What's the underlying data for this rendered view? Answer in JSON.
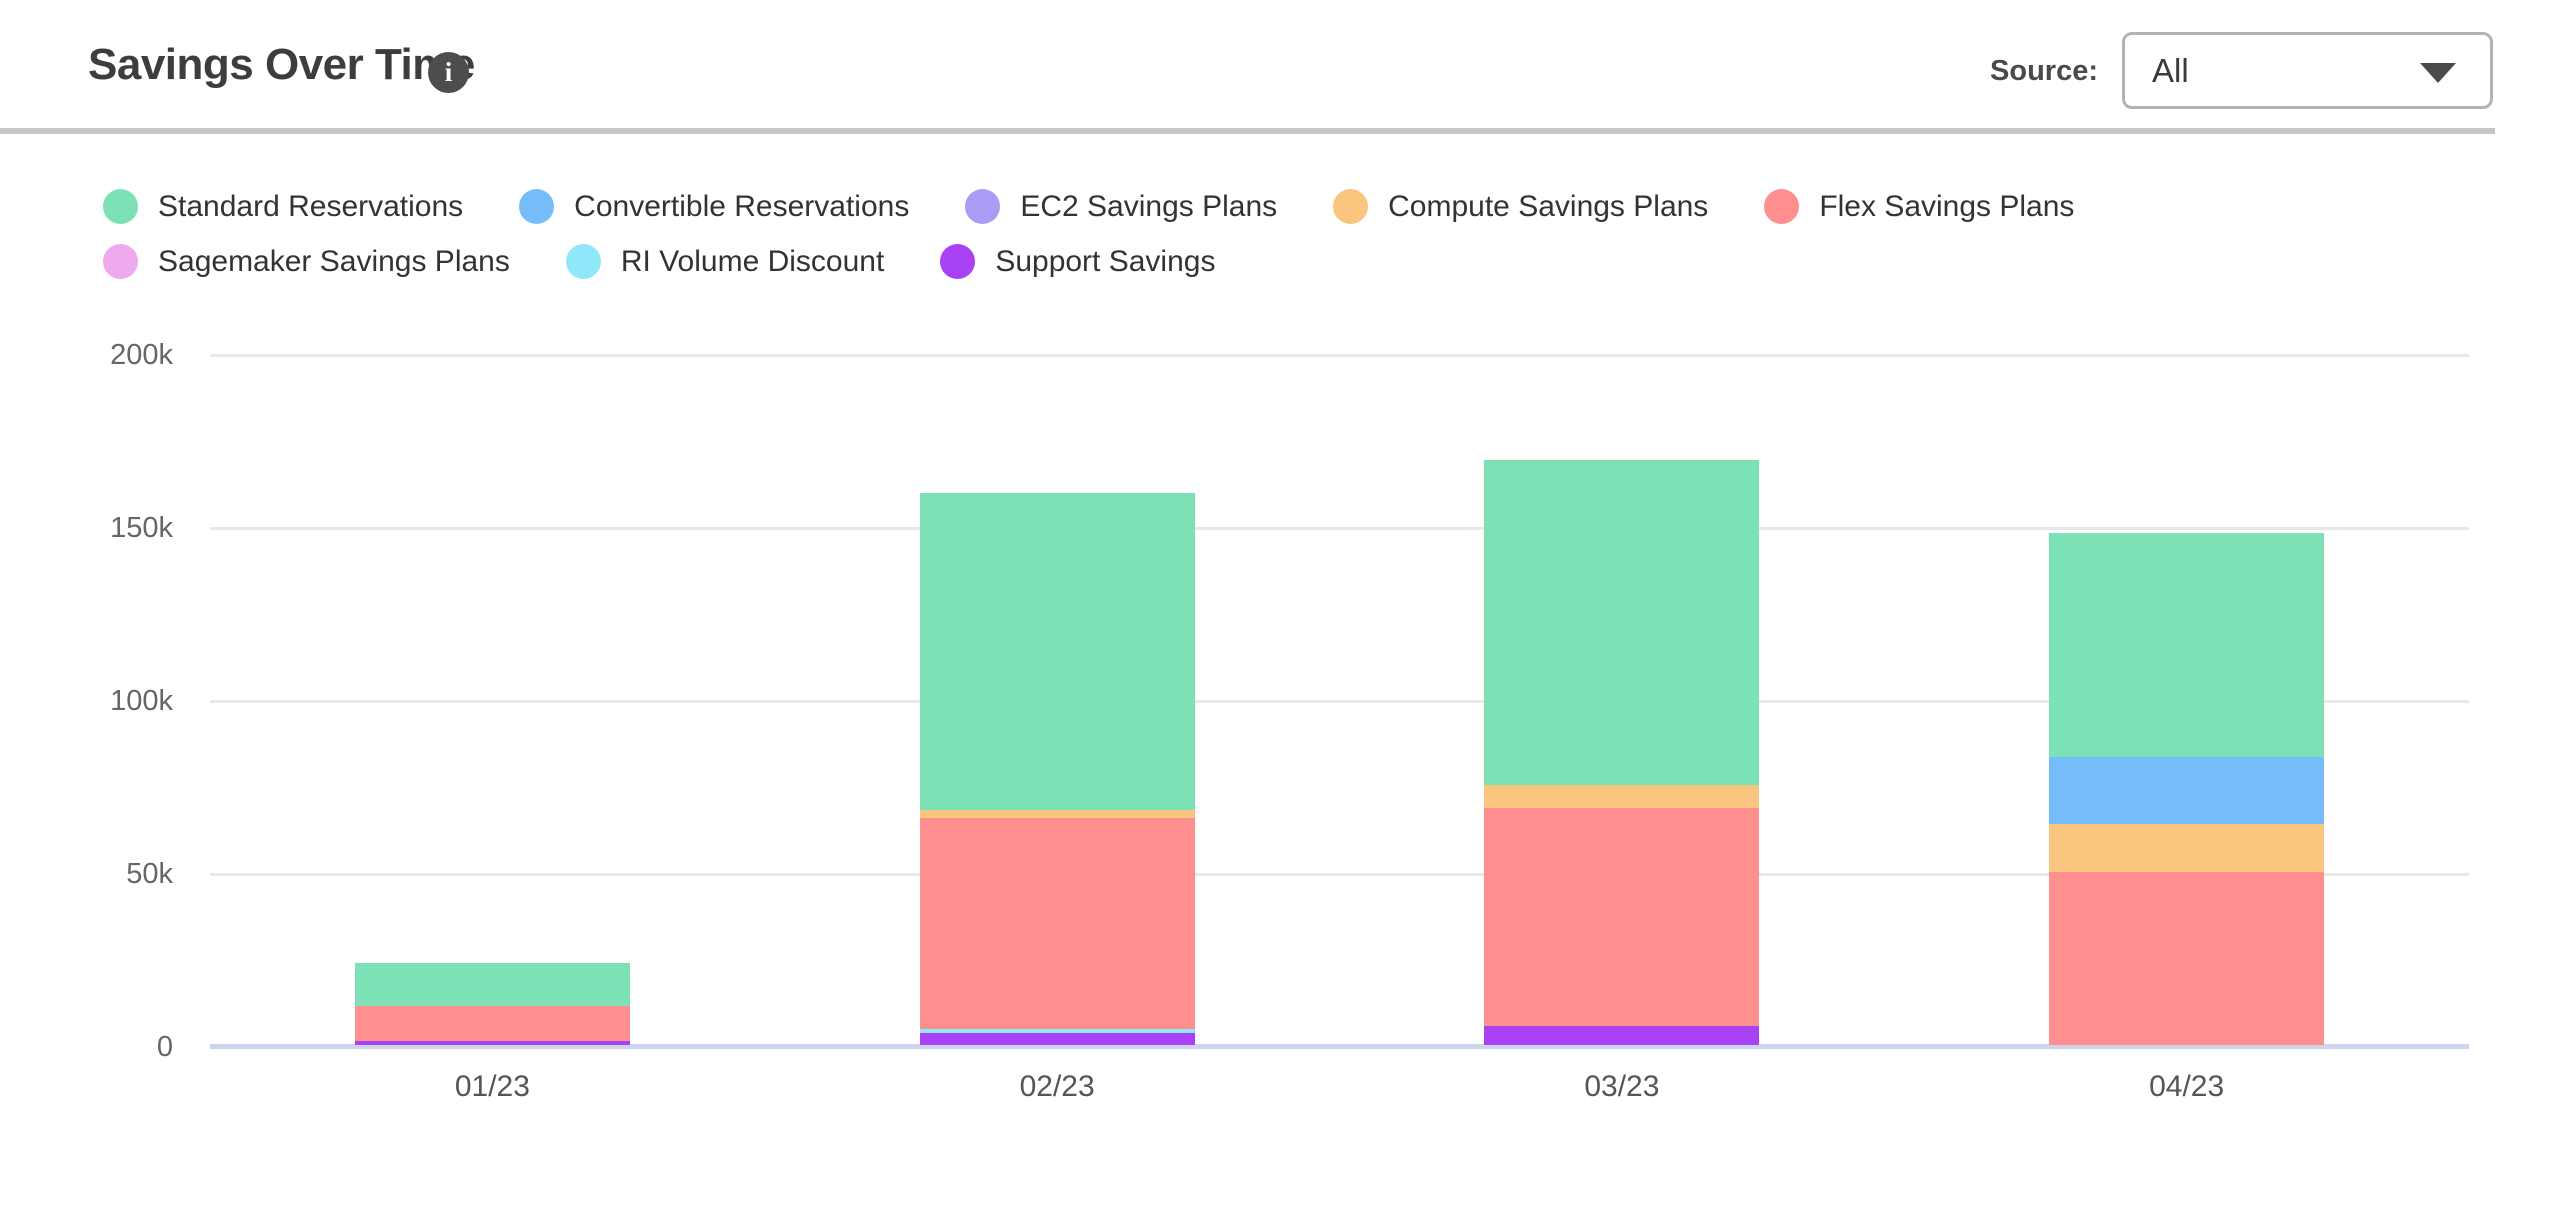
{
  "header": {
    "title": "Savings Over Time",
    "info_icon_glyph": "i",
    "source": {
      "label": "Source:",
      "selected": "All"
    }
  },
  "legend": {
    "rows": [
      [
        {
          "label": "Standard Reservations",
          "color": "#7de1b6"
        },
        {
          "label": "Convertible Reservations",
          "color": "#77bcfa"
        },
        {
          "label": "EC2 Savings Plans",
          "color": "#a89cf5"
        },
        {
          "label": "Compute Savings Plans",
          "color": "#f9c57f"
        },
        {
          "label": "Flex Savings Plans",
          "color": "#ff8f8f"
        }
      ],
      [
        {
          "label": "Sagemaker Savings Plans",
          "color": "#efa9ef"
        },
        {
          "label": "RI Volume Discount",
          "color": "#8fe8fa"
        },
        {
          "label": "Support Savings",
          "color": "#a941f5"
        }
      ]
    ]
  },
  "chart_data": {
    "type": "bar",
    "stacked": true,
    "title": "Savings Over Time",
    "categories": [
      "01/23",
      "02/23",
      "03/23",
      "04/23"
    ],
    "series": [
      {
        "name": "Standard Reservations",
        "color": "#7de1b6",
        "values": [
          12300,
          91600,
          94000,
          64900
        ]
      },
      {
        "name": "Convertible Reservations",
        "color": "#77bcfa",
        "values": [
          0,
          0,
          0,
          19500
        ]
      },
      {
        "name": "EC2 Savings Plans",
        "color": "#a89cf5",
        "values": [
          0,
          0,
          0,
          0
        ]
      },
      {
        "name": "Compute Savings Plans",
        "color": "#f9c57f",
        "values": [
          0,
          2300,
          6600,
          14000
        ]
      },
      {
        "name": "Flex Savings Plans",
        "color": "#ff8f8f",
        "values": [
          10200,
          61000,
          62900,
          50000
        ]
      },
      {
        "name": "Sagemaker Savings Plans",
        "color": "#efa9ef",
        "values": [
          0,
          0,
          0,
          0
        ]
      },
      {
        "name": "RI Volume Discount",
        "color": "#8fe8fa",
        "values": [
          0,
          1200,
          0,
          0
        ]
      },
      {
        "name": "Support Savings",
        "color": "#a941f5",
        "values": [
          1300,
          3500,
          5500,
          0
        ]
      }
    ],
    "stack_order_bottom_to_top": [
      "Support Savings",
      "RI Volume Discount",
      "Sagemaker Savings Plans",
      "Flex Savings Plans",
      "Compute Savings Plans",
      "EC2 Savings Plans",
      "Convertible Reservations",
      "Standard Reservations"
    ],
    "totals": [
      23800,
      159600,
      169000,
      148400
    ],
    "y_ticks": [
      {
        "value": 0,
        "label": "0"
      },
      {
        "value": 50000,
        "label": "50k"
      },
      {
        "value": 100000,
        "label": "100k"
      },
      {
        "value": 150000,
        "label": "150k"
      },
      {
        "value": 200000,
        "label": "200k"
      }
    ],
    "ylim": [
      0,
      200000
    ],
    "grid": "horizontal",
    "legend_position": "top"
  },
  "colors": {
    "axis_baseline": "#ccd4ee",
    "gridline": "#e9e9e9",
    "divider": "#c6c6c6",
    "title_text": "#3d3d3d",
    "tick_text": "#666666"
  }
}
